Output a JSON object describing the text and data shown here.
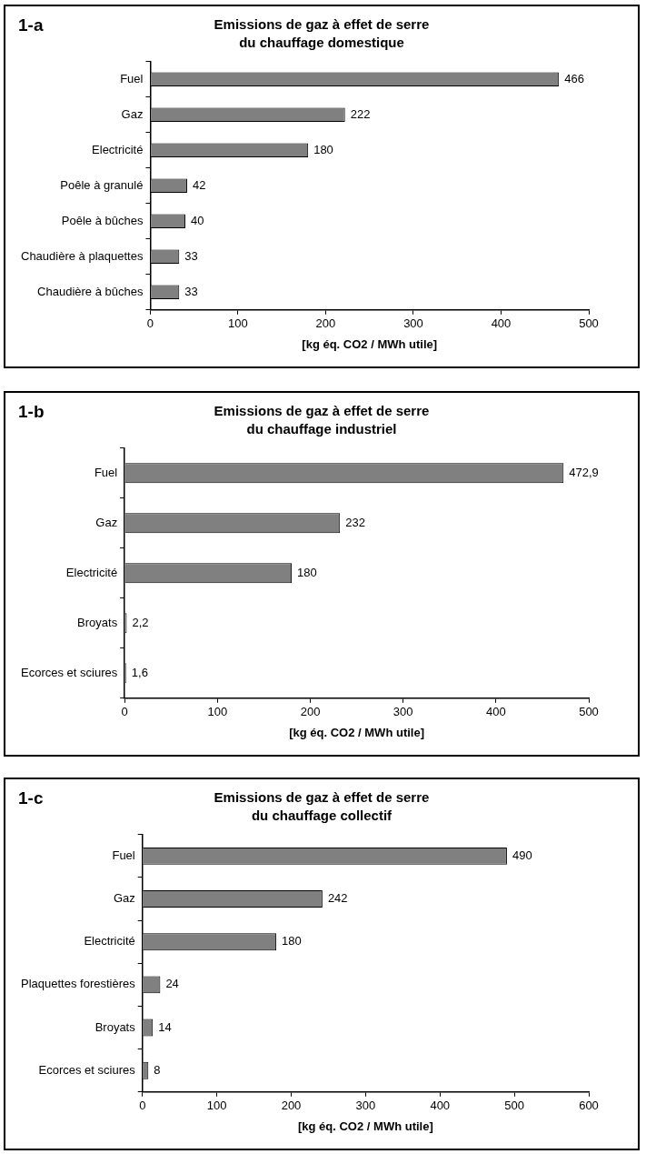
{
  "chart_data": [
    {
      "type": "bar",
      "orientation": "horizontal",
      "title": "Emissions de gaz à effet de serre du chauffage domestique",
      "xlabel": "[kg éq. CO2 / MWh utile]",
      "annotations": [
        "1-a"
      ],
      "categories": [
        "Fuel",
        "Gaz",
        "Electricité",
        "Poêle à granulé",
        "Poêle à bûches",
        "Chaudière à plaquettes",
        "Chaudière à bûches"
      ],
      "values": [
        466,
        222,
        180,
        42,
        40,
        33,
        33
      ],
      "color": "#808080",
      "data_labels": true,
      "xlim": [
        0,
        500
      ],
      "xticks": [
        0,
        100,
        200,
        300,
        400,
        500
      ],
      "grid": false,
      "legend": false
    },
    {
      "type": "bar",
      "orientation": "horizontal",
      "title": "Emissions de gaz à effet de serre du chauffage industriel",
      "xlabel": "[kg éq. CO2 / MWh utile]",
      "annotations": [
        "1-b"
      ],
      "categories": [
        "Fuel",
        "Gaz",
        "Electricité",
        "Broyats",
        "Ecorces et sciures"
      ],
      "values": [
        472.9,
        232,
        180,
        2.2,
        1.6
      ],
      "value_labels": [
        "472,9",
        "232",
        "180",
        "2,2",
        "1,6"
      ],
      "color": "#808080",
      "xlim": [
        0,
        500
      ],
      "xticks": [
        0,
        100,
        200,
        300,
        400,
        500
      ],
      "grid": false,
      "legend": false
    },
    {
      "type": "bar",
      "orientation": "horizontal",
      "title": "Emissions de gaz à effet de serre du chauffage collectif",
      "xlabel": "[kg éq. CO2 / MWh utile]",
      "annotations": [
        "1-c"
      ],
      "categories": [
        "Fuel",
        "Gaz",
        "Electricité",
        "Plaquettes forestières",
        "Broyats",
        "Ecorces et sciures"
      ],
      "values": [
        490,
        242,
        180,
        24,
        14,
        8
      ],
      "color": "#808080",
      "data_labels": true,
      "xlim": [
        0,
        600
      ],
      "xticks": [
        0,
        100,
        200,
        300,
        400,
        500,
        600
      ],
      "grid": false,
      "legend": false
    }
  ]
}
